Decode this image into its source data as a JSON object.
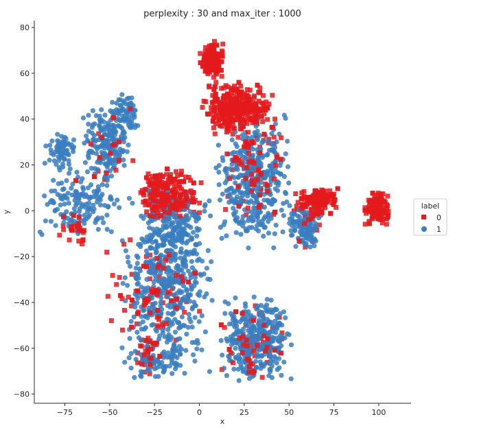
{
  "chart_data": {
    "type": "scatter",
    "title": "perplexity : 30 and max_iter : 1000",
    "xlabel": "x",
    "ylabel": "y",
    "xlim": [
      -92,
      118
    ],
    "ylim": [
      -84,
      83
    ],
    "xticks": [
      -75,
      -50,
      -25,
      0,
      25,
      50,
      75,
      100
    ],
    "xtick_labels": [
      "−75",
      "−50",
      "−25",
      "0",
      "25",
      "50",
      "75",
      "100"
    ],
    "yticks": [
      -80,
      -60,
      -40,
      -20,
      0,
      20,
      40,
      60,
      80
    ],
    "ytick_labels": [
      "−80",
      "−60",
      "−40",
      "−20",
      "0",
      "20",
      "40",
      "60",
      "80"
    ],
    "grid": false,
    "legend": {
      "title": "label",
      "placement": "outside-right",
      "entries": [
        {
          "label": "0",
          "marker": "square",
          "color": "#e41a1c"
        },
        {
          "label": "1",
          "marker": "circle",
          "color": "#3a7ebf"
        }
      ]
    },
    "series": [
      {
        "name": "0",
        "marker": "square",
        "color": "#e41a1c",
        "clusters": [
          {
            "cx": 7,
            "cy": 66,
            "sx": 3,
            "sy": 4,
            "n": 150
          },
          {
            "cx": 22,
            "cy": 45,
            "sx": 9,
            "sy": 5,
            "n": 380
          },
          {
            "cx": -17,
            "cy": 7,
            "sx": 8,
            "sy": 5,
            "n": 260
          },
          {
            "cx": 66,
            "cy": 4,
            "sx": 6,
            "sy": 3,
            "n": 170
          },
          {
            "cx": 99,
            "cy": 1,
            "sx": 3,
            "sy": 3,
            "n": 150
          },
          {
            "cx": -25,
            "cy": -35,
            "sx": 12,
            "sy": 10,
            "n": 120
          },
          {
            "cx": 30,
            "cy": 20,
            "sx": 8,
            "sy": 12,
            "n": 120
          },
          {
            "cx": 30,
            "cy": -58,
            "sx": 9,
            "sy": 8,
            "n": 70
          },
          {
            "cx": -28,
            "cy": -62,
            "sx": 4,
            "sy": 4,
            "n": 40
          },
          {
            "cx": -50,
            "cy": 30,
            "sx": 8,
            "sy": 10,
            "n": 25
          },
          {
            "cx": -68,
            "cy": -8,
            "sx": 4,
            "sy": 3,
            "n": 25
          },
          {
            "cx": 60,
            "cy": -10,
            "sx": 3,
            "sy": 4,
            "n": 15
          }
        ]
      },
      {
        "name": "1",
        "marker": "circle",
        "color": "#3a7ebf",
        "clusters": [
          {
            "cx": -77,
            "cy": 26,
            "sx": 4,
            "sy": 4,
            "n": 70
          },
          {
            "cx": -52,
            "cy": 29,
            "sx": 6,
            "sy": 8,
            "n": 190
          },
          {
            "cx": -67,
            "cy": 2,
            "sx": 11,
            "sy": 7,
            "n": 150
          },
          {
            "cx": -42,
            "cy": 42,
            "sx": 4,
            "sy": 4,
            "n": 80
          },
          {
            "cx": -18,
            "cy": -30,
            "sx": 11,
            "sy": 18,
            "n": 520
          },
          {
            "cx": -12,
            "cy": -8,
            "sx": 8,
            "sy": 6,
            "n": 110
          },
          {
            "cx": -25,
            "cy": -65,
            "sx": 8,
            "sy": 4,
            "n": 70
          },
          {
            "cx": 30,
            "cy": 12,
            "sx": 9,
            "sy": 13,
            "n": 360
          },
          {
            "cx": 32,
            "cy": -56,
            "sx": 9,
            "sy": 8,
            "n": 340
          },
          {
            "cx": 59,
            "cy": -7,
            "sx": 4,
            "sy": 4,
            "n": 120
          }
        ]
      }
    ]
  }
}
